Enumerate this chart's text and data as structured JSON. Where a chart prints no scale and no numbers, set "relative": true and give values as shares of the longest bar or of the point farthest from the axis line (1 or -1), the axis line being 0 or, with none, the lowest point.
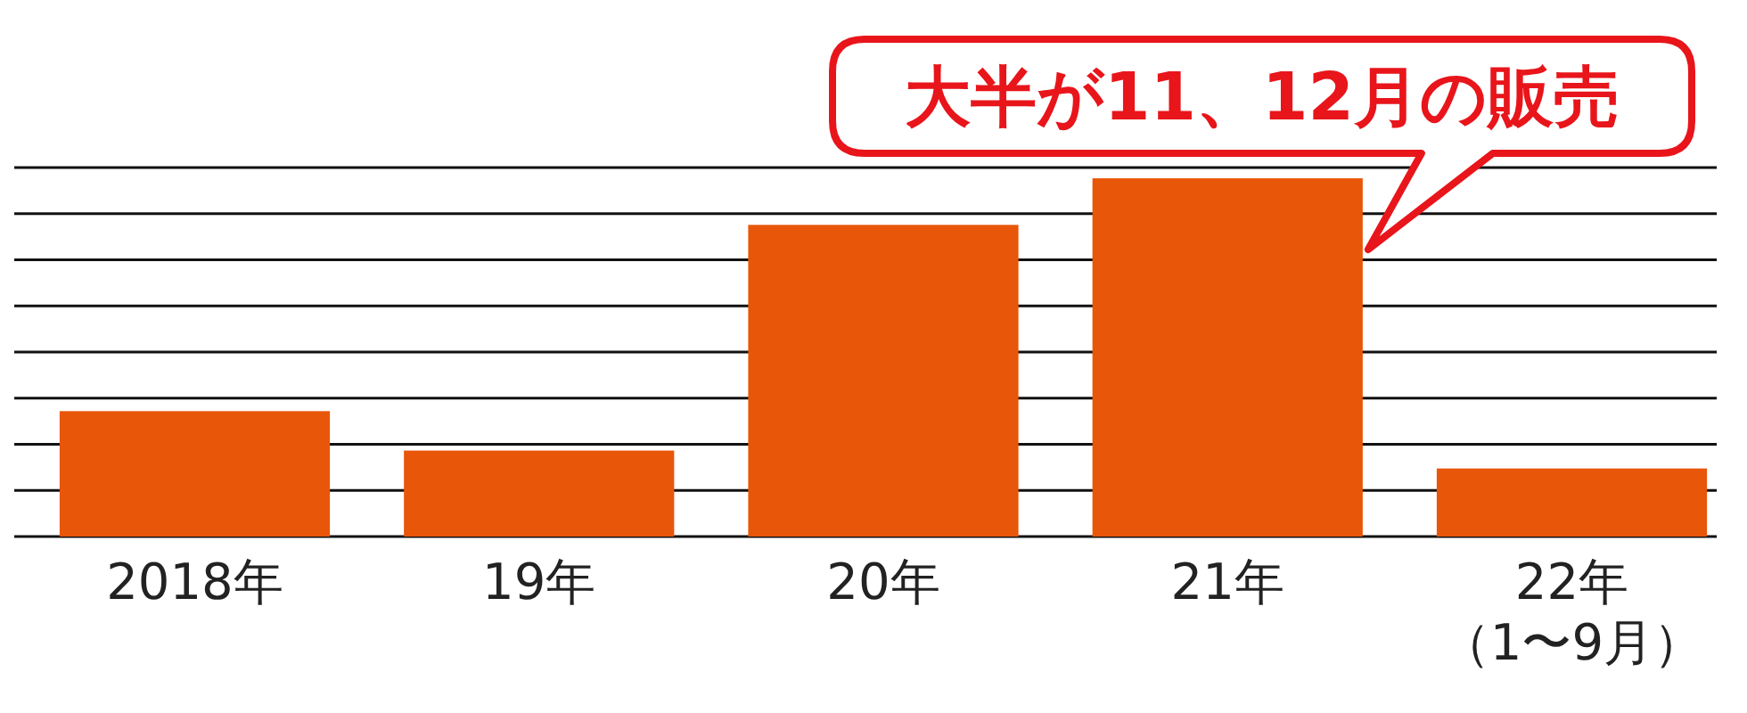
{
  "chart_data": {
    "type": "bar",
    "relative": true,
    "categories": [
      "2018年",
      "19年",
      "20年",
      "21年",
      "22年（1〜9月）"
    ],
    "values": [
      0.35,
      0.24,
      0.87,
      1,
      0.19
    ],
    "color": "#e8560a",
    "grid": true,
    "annotations": [
      {
        "text": "大半が11、12月の販売",
        "x": "21年",
        "y": 1
      }
    ]
  }
}
